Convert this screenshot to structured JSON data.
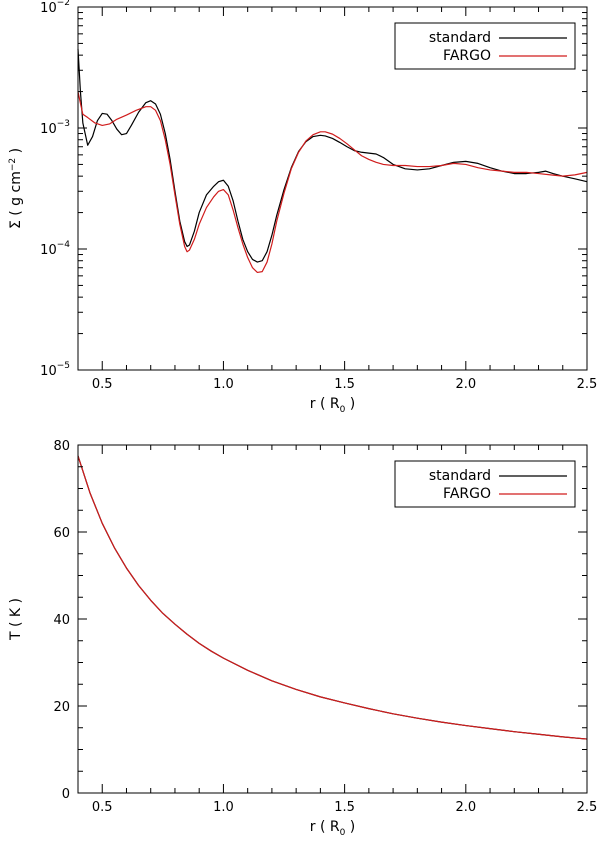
{
  "chart_data": [
    {
      "type": "line",
      "xlabel": "r ( R",
      "xlabel_sub": "0",
      "xlabel_end": " )",
      "ylabel": "Σ ( g cm",
      "ylabel_sup": "−2",
      "ylabel_end": " )",
      "xlim": [
        0.4,
        2.5
      ],
      "ylim": [
        1e-05,
        0.01
      ],
      "yscale": "log",
      "xticks": [
        0.5,
        1.0,
        1.5,
        2.0,
        2.5
      ],
      "xtick_labels": [
        "0.5",
        "1.0",
        "1.5",
        "2.0",
        "2.5"
      ],
      "yticks": [
        1e-05,
        0.0001,
        0.001,
        0.01
      ],
      "ytick_base": [
        "10",
        "10",
        "10",
        "10"
      ],
      "ytick_exp": [
        "−5",
        "−4",
        "−3",
        "−2"
      ],
      "legend_position": "top-right",
      "series": [
        {
          "name": "standard",
          "color": "#000000",
          "x": [
            0.4,
            0.41,
            0.42,
            0.44,
            0.46,
            0.48,
            0.5,
            0.52,
            0.54,
            0.56,
            0.58,
            0.6,
            0.62,
            0.65,
            0.68,
            0.7,
            0.72,
            0.74,
            0.76,
            0.78,
            0.8,
            0.82,
            0.84,
            0.85,
            0.86,
            0.88,
            0.9,
            0.93,
            0.96,
            0.98,
            1.0,
            1.02,
            1.04,
            1.06,
            1.08,
            1.1,
            1.12,
            1.14,
            1.16,
            1.18,
            1.2,
            1.22,
            1.25,
            1.28,
            1.31,
            1.34,
            1.37,
            1.4,
            1.42,
            1.45,
            1.48,
            1.51,
            1.54,
            1.57,
            1.6,
            1.63,
            1.66,
            1.7,
            1.75,
            1.8,
            1.85,
            1.9,
            1.95,
            2.0,
            2.05,
            2.1,
            2.15,
            2.2,
            2.25,
            2.3,
            2.33,
            2.36,
            2.4,
            2.45,
            2.5
          ],
          "y": [
            0.0045,
            0.002,
            0.0011,
            0.00072,
            0.00085,
            0.00115,
            0.00132,
            0.0013,
            0.00115,
            0.00098,
            0.00088,
            0.0009,
            0.00105,
            0.00135,
            0.00162,
            0.00168,
            0.00158,
            0.0013,
            0.0009,
            0.00055,
            0.0003,
            0.00017,
            0.000115,
            0.000105,
            0.000108,
            0.00014,
            0.0002,
            0.00028,
            0.00033,
            0.00036,
            0.00037,
            0.00033,
            0.00025,
            0.00017,
            0.00012,
            9.5e-05,
            8.2e-05,
            7.8e-05,
            8e-05,
            9.5e-05,
            0.00013,
            0.00019,
            0.00031,
            0.00047,
            0.00064,
            0.00077,
            0.00085,
            0.00087,
            0.00086,
            0.00082,
            0.00076,
            0.0007,
            0.00065,
            0.00063,
            0.00062,
            0.00061,
            0.00057,
            0.0005,
            0.00046,
            0.00045,
            0.00046,
            0.00049,
            0.00052,
            0.00053,
            0.00051,
            0.00047,
            0.00044,
            0.00042,
            0.00042,
            0.00043,
            0.00044,
            0.00042,
            0.0004,
            0.00038,
            0.00036
          ]
        },
        {
          "name": "FARGO",
          "color": "#d01c1c",
          "x": [
            0.4,
            0.41,
            0.42,
            0.44,
            0.47,
            0.5,
            0.53,
            0.56,
            0.6,
            0.64,
            0.68,
            0.7,
            0.72,
            0.74,
            0.76,
            0.78,
            0.8,
            0.82,
            0.84,
            0.85,
            0.86,
            0.88,
            0.9,
            0.93,
            0.96,
            0.98,
            1.0,
            1.02,
            1.04,
            1.06,
            1.08,
            1.1,
            1.12,
            1.14,
            1.16,
            1.18,
            1.2,
            1.22,
            1.25,
            1.28,
            1.31,
            1.34,
            1.37,
            1.4,
            1.42,
            1.45,
            1.48,
            1.51,
            1.54,
            1.57,
            1.6,
            1.63,
            1.66,
            1.7,
            1.75,
            1.8,
            1.85,
            1.9,
            1.95,
            2.0,
            2.05,
            2.1,
            2.15,
            2.2,
            2.25,
            2.3,
            2.35,
            2.4,
            2.45,
            2.5
          ],
          "y": [
            0.002,
            0.0016,
            0.0013,
            0.00122,
            0.0011,
            0.00105,
            0.00108,
            0.00118,
            0.00128,
            0.0014,
            0.0015,
            0.0015,
            0.0014,
            0.00115,
            0.0008,
            0.0005,
            0.00028,
            0.00016,
            0.000105,
            9.5e-05,
            9.8e-05,
            0.00012,
            0.00016,
            0.00022,
            0.00027,
            0.0003,
            0.00031,
            0.00028,
            0.00021,
            0.00015,
            0.00011,
            8.5e-05,
            7e-05,
            6.4e-05,
            6.5e-05,
            7.8e-05,
            0.00011,
            0.00017,
            0.00029,
            0.00046,
            0.00063,
            0.00078,
            0.00088,
            0.00093,
            0.00093,
            0.00089,
            0.00082,
            0.00074,
            0.00066,
            0.00059,
            0.00055,
            0.00052,
            0.0005,
            0.00049,
            0.00049,
            0.00048,
            0.00048,
            0.00049,
            0.00051,
            0.0005,
            0.00047,
            0.00045,
            0.00044,
            0.00043,
            0.00043,
            0.00042,
            0.00041,
            0.0004,
            0.00041,
            0.00043
          ]
        }
      ]
    },
    {
      "type": "line",
      "xlabel": "r ( R",
      "xlabel_sub": "0",
      "xlabel_end": " )",
      "ylabel": "T ( K )",
      "xlim": [
        0.4,
        2.5
      ],
      "ylim": [
        0,
        80
      ],
      "yscale": "linear",
      "xticks": [
        0.5,
        1.0,
        1.5,
        2.0,
        2.5
      ],
      "xtick_labels": [
        "0.5",
        "1.0",
        "1.5",
        "2.0",
        "2.5"
      ],
      "yticks": [
        0,
        20,
        40,
        60,
        80
      ],
      "ytick_labels": [
        "0",
        "20",
        "40",
        "60",
        "80"
      ],
      "legend_position": "top-right",
      "series": [
        {
          "name": "standard",
          "color": "#000000",
          "x": [
            0.4,
            0.45,
            0.5,
            0.55,
            0.6,
            0.65,
            0.7,
            0.75,
            0.8,
            0.85,
            0.9,
            0.95,
            1.0,
            1.1,
            1.2,
            1.3,
            1.4,
            1.5,
            1.6,
            1.7,
            1.8,
            1.9,
            2.0,
            2.1,
            2.2,
            2.3,
            2.4,
            2.5
          ],
          "y": [
            77.5,
            68.9,
            62.0,
            56.4,
            51.7,
            47.7,
            44.3,
            41.3,
            38.8,
            36.5,
            34.4,
            32.6,
            31.0,
            28.2,
            25.8,
            23.8,
            22.1,
            20.7,
            19.4,
            18.2,
            17.2,
            16.3,
            15.5,
            14.8,
            14.1,
            13.5,
            12.9,
            12.4
          ]
        },
        {
          "name": "FARGO",
          "color": "#d01c1c",
          "x": [
            0.4,
            0.45,
            0.5,
            0.55,
            0.6,
            0.65,
            0.7,
            0.75,
            0.8,
            0.85,
            0.9,
            0.95,
            1.0,
            1.1,
            1.2,
            1.3,
            1.4,
            1.5,
            1.6,
            1.7,
            1.8,
            1.9,
            2.0,
            2.1,
            2.2,
            2.3,
            2.4,
            2.5
          ],
          "y": [
            77.5,
            68.9,
            62.0,
            56.4,
            51.7,
            47.7,
            44.3,
            41.3,
            38.8,
            36.5,
            34.4,
            32.6,
            31.0,
            28.2,
            25.8,
            23.8,
            22.1,
            20.7,
            19.4,
            18.2,
            17.2,
            16.3,
            15.5,
            14.8,
            14.1,
            13.5,
            12.9,
            12.4
          ]
        }
      ]
    }
  ]
}
